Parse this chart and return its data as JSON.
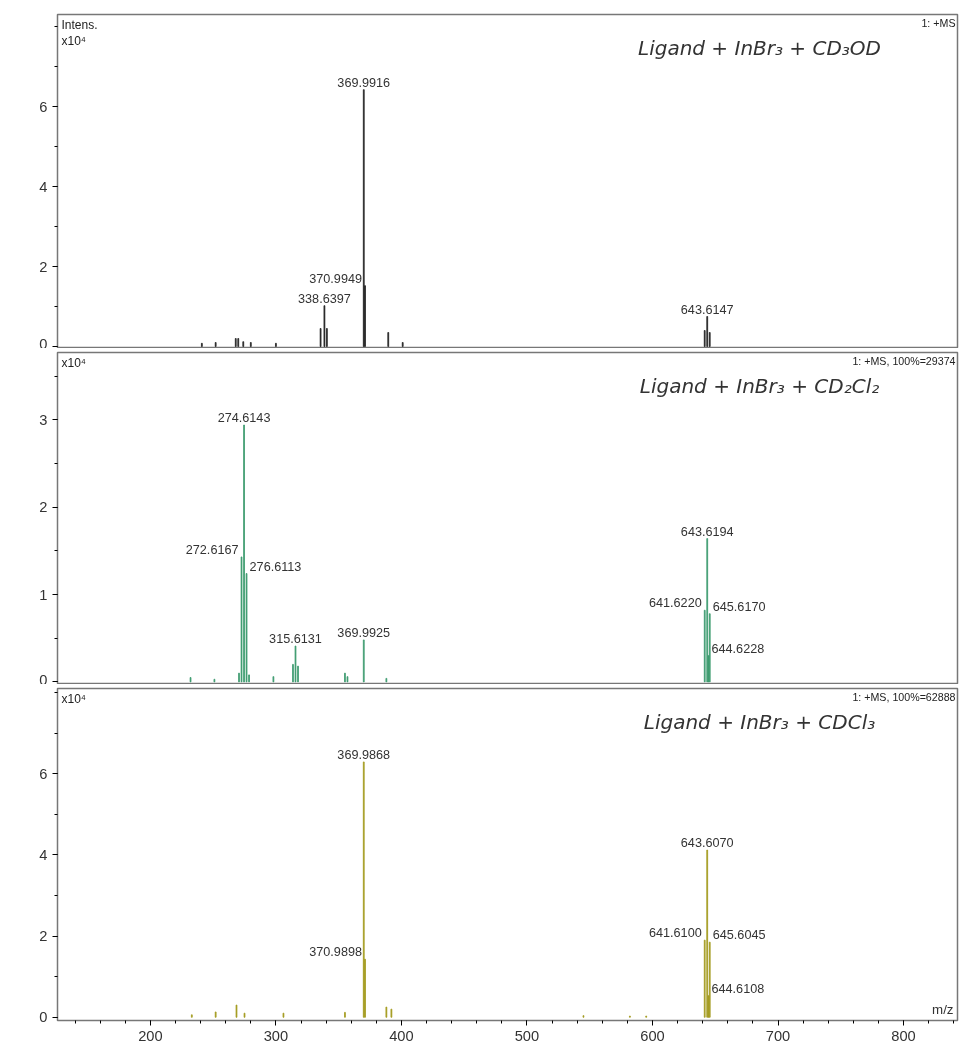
{
  "chart_data": [
    {
      "type": "bar",
      "title": "Ligand + InBr₃ + CD₃OD",
      "ylabel": "Intens.\nx10⁴",
      "color": "#222222",
      "x": [
        241,
        252,
        268,
        270,
        274,
        280,
        300,
        335.6,
        338.6397,
        340.6,
        369.9916,
        370.9949,
        389.5,
        401,
        641.6,
        643.6147,
        645.6
      ],
      "values": [
        0.08,
        0.1,
        0.2,
        0.2,
        0.12,
        0.1,
        0.08,
        0.45,
        1.02,
        0.45,
        6.42,
        1.52,
        0.35,
        0.1,
        0.4,
        0.75,
        0.35
      ],
      "xlim": [
        126,
        843
      ],
      "xticks": [
        200,
        300,
        400,
        500,
        600,
        700,
        800
      ],
      "ylim": [
        -0.05,
        8.3
      ],
      "yticks": [
        0,
        2,
        4,
        6
      ],
      "tick_labels": "y",
      "annotations": [
        "1: +MS",
        {
          "text": "369.9916",
          "x": 369.9916,
          "y": 6.42
        },
        {
          "text": "370.9949",
          "x": 370.9949,
          "y": 1.52
        },
        {
          "text": "338.6397",
          "x": 338.6397,
          "y": 1.02
        },
        {
          "text": "643.6147",
          "x": 643.6147,
          "y": 0.75
        }
      ]
    },
    {
      "type": "bar",
      "title": "Ligand + InBr₃ + CD₂Cl₂",
      "ylabel": "x10⁴",
      "color": "#3c9a6e",
      "x": [
        232,
        251,
        270.6,
        272.6167,
        274.6143,
        276.6113,
        278.6,
        298,
        313.6,
        315.6131,
        317.6,
        355,
        357,
        369.9925,
        388,
        641.622,
        643.6194,
        644.6228,
        645.617
      ],
      "values": [
        0.05,
        0.03,
        0.1,
        1.43,
        2.94,
        1.24,
        0.08,
        0.06,
        0.2,
        0.41,
        0.18,
        0.1,
        0.06,
        0.48,
        0.04,
        0.82,
        1.64,
        0.3,
        0.78
      ],
      "xlim": [
        126,
        843
      ],
      "xticks": [
        200,
        300,
        400,
        500,
        600,
        700,
        800
      ],
      "ylim": [
        -0.03,
        3.77
      ],
      "yticks": [
        0,
        1,
        2,
        3
      ],
      "tick_labels": "y",
      "annotations": [
        "1: +MS, 100%=29374",
        {
          "text": "274.6143",
          "x": 274.6143,
          "y": 2.94
        },
        {
          "text": "272.6167",
          "x": 272.6167,
          "y": 1.43
        },
        {
          "text": "276.6113",
          "x": 276.6113,
          "y": 1.24
        },
        {
          "text": "315.6131",
          "x": 315.6131,
          "y": 0.41
        },
        {
          "text": "369.9925",
          "x": 369.9925,
          "y": 0.48
        },
        {
          "text": "643.6194",
          "x": 643.6194,
          "y": 1.64
        },
        {
          "text": "641.6220",
          "x": 641.622,
          "y": 0.82
        },
        {
          "text": "645.6170",
          "x": 645.617,
          "y": 0.78
        },
        {
          "text": "644.6228",
          "x": 644.6228,
          "y": 0.3
        }
      ]
    },
    {
      "type": "bar",
      "title": "Ligand + InBr₃ + CDCl₃",
      "ylabel": "x10⁴",
      "xlabel": "m/z",
      "color": "#a39a1e",
      "x": [
        233,
        252,
        268.6,
        275,
        306,
        355,
        369.9868,
        370.9898,
        388,
        392,
        545,
        582,
        595,
        641.61,
        643.607,
        644.6108,
        645.6045
      ],
      "values": [
        0.06,
        0.13,
        0.3,
        0.1,
        0.1,
        0.12,
        6.29,
        1.43,
        0.25,
        0.2,
        0.04,
        0.03,
        0.03,
        1.9,
        4.12,
        0.53,
        1.85
      ],
      "xlim": [
        126,
        843
      ],
      "xticks": [
        200,
        300,
        400,
        500,
        600,
        700,
        800
      ],
      "ylim": [
        -0.08,
        8.1
      ],
      "yticks": [
        0,
        2,
        4,
        6
      ],
      "annotations": [
        "1: +MS, 100%=62888",
        {
          "text": "369.9868",
          "x": 369.9868,
          "y": 6.29
        },
        {
          "text": "370.9898",
          "x": 370.9898,
          "y": 1.43
        },
        {
          "text": "643.6070",
          "x": 643.607,
          "y": 4.12
        },
        {
          "text": "641.6100",
          "x": 641.61,
          "y": 1.9
        },
        {
          "text": "645.6045",
          "x": 645.6045,
          "y": 1.85
        },
        {
          "text": "644.6108",
          "x": 644.6108,
          "y": 0.53
        }
      ]
    }
  ]
}
